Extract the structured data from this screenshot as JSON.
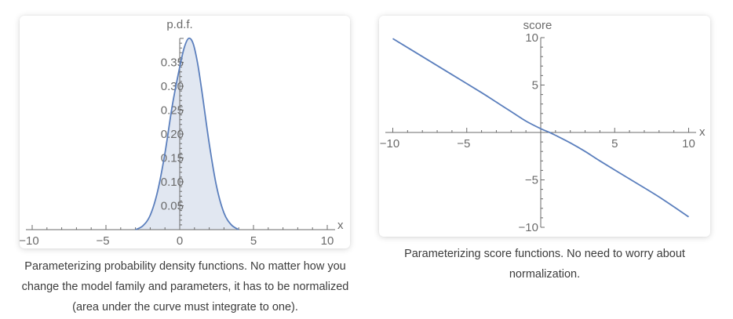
{
  "chart_data": [
    {
      "type": "area",
      "title": "",
      "xlabel": "x",
      "ylabel": "p.d.f.",
      "xlim": [
        -10,
        10
      ],
      "ylim": [
        0,
        0.4
      ],
      "grid": false,
      "legend": null,
      "x_ticks": [
        -10,
        -5,
        0,
        5,
        10
      ],
      "x_tick_labels": [
        "−10",
        "−5",
        "0",
        "5",
        "10"
      ],
      "y_ticks": [
        0.05,
        0.1,
        0.15,
        0.2,
        0.25,
        0.3,
        0.35
      ],
      "y_tick_labels": [
        "0.05",
        "0.10",
        "0.15",
        "0.20",
        "0.25",
        "0.30",
        "0.35"
      ],
      "series": [
        {
          "name": "p.d.f.",
          "color": "#5b7fbd",
          "fill": "#e1e7f1",
          "x": [
            -3.0,
            -2.5,
            -2.0,
            -1.5,
            -1.0,
            -0.5,
            0.0,
            0.3,
            0.6,
            0.9,
            1.2,
            1.5,
            2.0,
            2.5,
            3.0,
            3.5,
            4.0
          ],
          "y": [
            0.0,
            0.008,
            0.03,
            0.08,
            0.16,
            0.26,
            0.34,
            0.38,
            0.4,
            0.39,
            0.35,
            0.29,
            0.18,
            0.09,
            0.035,
            0.01,
            0.0
          ]
        }
      ]
    },
    {
      "type": "line",
      "title": "",
      "xlabel": "x",
      "ylabel": "score",
      "xlim": [
        -10,
        10
      ],
      "ylim": [
        -10,
        10
      ],
      "grid": false,
      "legend": null,
      "x_ticks": [
        -10,
        -5,
        5,
        10
      ],
      "x_tick_labels": [
        "−10",
        "−5",
        "5",
        "10"
      ],
      "y_ticks": [
        -10,
        -5,
        5,
        10
      ],
      "y_tick_labels": [
        "−10",
        "−5",
        "5",
        "10"
      ],
      "series": [
        {
          "name": "score",
          "color": "#5b7fbd",
          "x": [
            -10,
            -8,
            -6,
            -4,
            -3,
            -2,
            -1,
            0,
            0.6,
            1,
            2,
            3,
            4,
            6,
            8,
            10
          ],
          "y": [
            9.9,
            8.0,
            6.1,
            4.2,
            3.2,
            2.2,
            1.2,
            0.4,
            0.0,
            -0.3,
            -1.1,
            -2.0,
            -3.0,
            -4.9,
            -6.8,
            -8.9
          ]
        }
      ]
    }
  ],
  "captions": {
    "left": "Parameterizing probability density functions. No matter how you change the model family and parameters, it has to be normalized (area under the curve must integrate to one).",
    "right": "Parameterizing score functions. No need to worry about normalization."
  },
  "colors": {
    "curve": "#5b7fbd",
    "fill": "#e1e7f1",
    "axis": "#6b6b6b",
    "caption_text": "#3c3c3c"
  }
}
